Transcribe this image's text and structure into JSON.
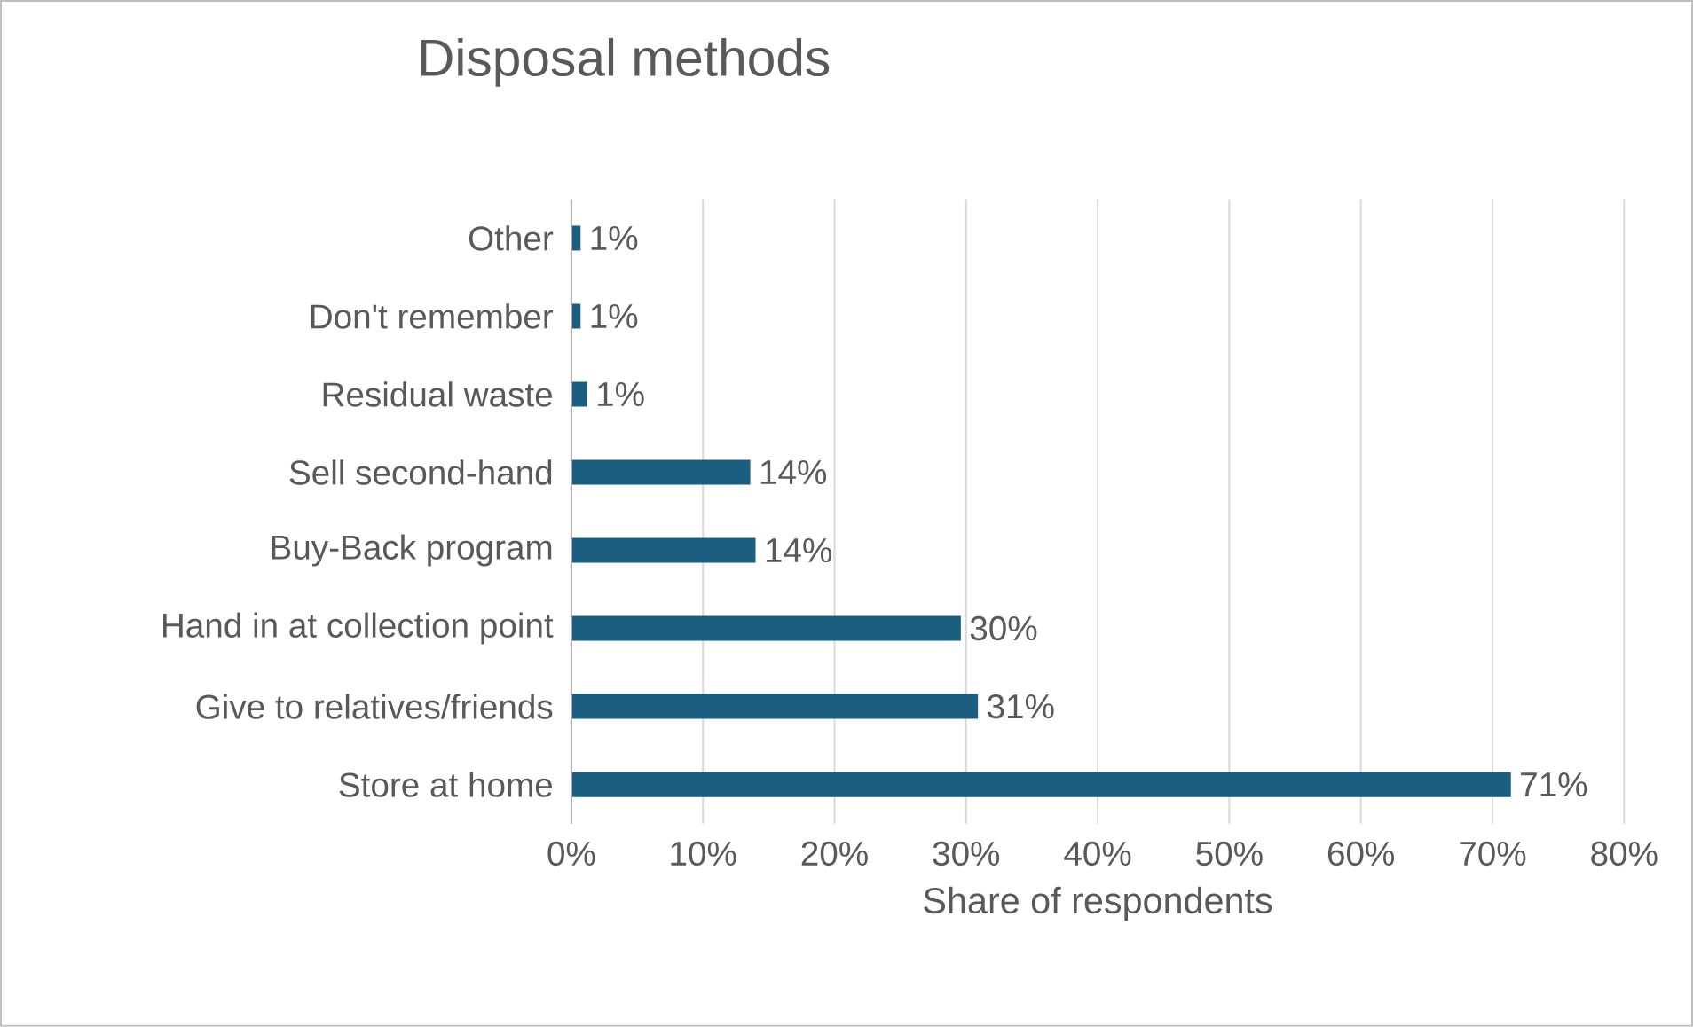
{
  "chart_data": {
    "type": "bar",
    "orientation": "horizontal",
    "title": "Disposal methods",
    "xlabel": "Share of respondents",
    "categories": [
      "Other",
      "Don't remember",
      "Residual waste",
      "Sell second-hand",
      "Buy-Back program",
      "Hand in at collection point",
      "Give to relatives/friends",
      "Store at home"
    ],
    "values": [
      0.7,
      0.7,
      1.2,
      13.6,
      14.0,
      29.6,
      30.9,
      71.4
    ],
    "value_labels": [
      "1%",
      "1%",
      "1%",
      "14%",
      "14%",
      "30%",
      "31%",
      "71%"
    ],
    "color": "#1b5e80",
    "xlim": [
      0,
      80
    ],
    "xticks": [
      {
        "value": 0,
        "label": "0%"
      },
      {
        "value": 10,
        "label": "10%"
      },
      {
        "value": 20,
        "label": "20%"
      },
      {
        "value": 30,
        "label": "30%"
      },
      {
        "value": 40,
        "label": "40%"
      },
      {
        "value": 50,
        "label": "50%"
      },
      {
        "value": 60,
        "label": "60%"
      },
      {
        "value": 70,
        "label": "70%"
      },
      {
        "value": 80,
        "label": "80%"
      }
    ],
    "grid": "x"
  }
}
